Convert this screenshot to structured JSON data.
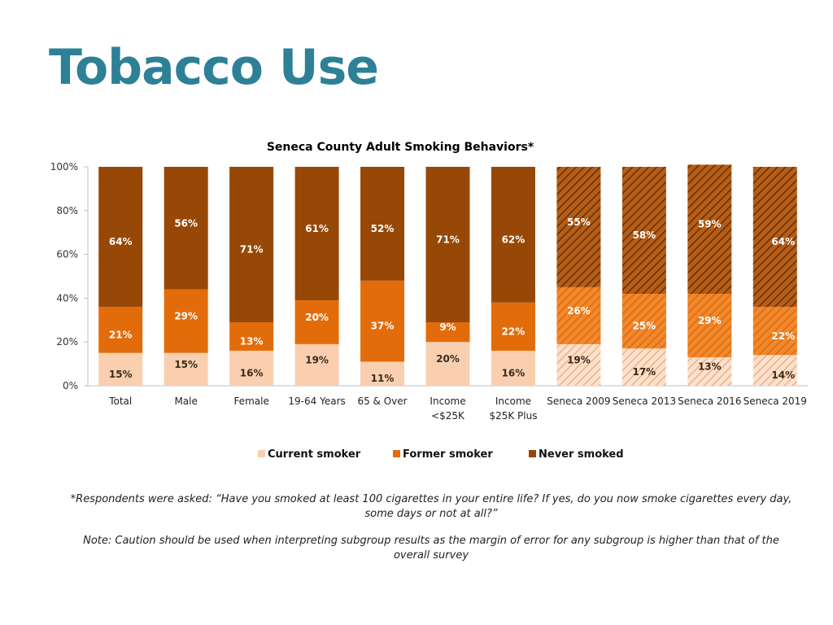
{
  "page": {
    "title": "Tobacco Use",
    "footnote1": "*Respondents were asked: “Have you smoked at least 100 cigarettes in your entire life? If yes, do you now smoke cigarettes every day, some days or not at all?”",
    "footnote2": "Note: Caution should be used when interpreting subgroup results as the margin of error for any subgroup is higher than that of the overall survey"
  },
  "chart_data": {
    "type": "bar",
    "stacked": true,
    "title": "Seneca County Adult Smoking Behaviors*",
    "categories": [
      [
        "Total"
      ],
      [
        "Male"
      ],
      [
        "Female"
      ],
      [
        "19-64 Years"
      ],
      [
        "65 & Over"
      ],
      [
        "Income",
        "<$25K"
      ],
      [
        "Income",
        "$25K Plus"
      ],
      [
        "Seneca 2009"
      ],
      [
        "Seneca 2013"
      ],
      [
        "Seneca 2016"
      ],
      [
        "Seneca 2019"
      ]
    ],
    "hatched_categories": [
      7,
      8,
      9,
      10
    ],
    "series": [
      {
        "name": "Current smoker",
        "color": "#f9cfb0",
        "values": [
          15,
          15,
          16,
          19,
          11,
          20,
          16,
          19,
          17,
          13,
          14
        ]
      },
      {
        "name": "Former smoker",
        "color": "#e36c0a",
        "values": [
          21,
          29,
          13,
          20,
          37,
          9,
          22,
          26,
          25,
          29,
          22
        ]
      },
      {
        "name": "Never smoked",
        "color": "#974806",
        "values": [
          64,
          56,
          71,
          61,
          52,
          71,
          62,
          55,
          58,
          59,
          64
        ]
      }
    ],
    "ylim": [
      0,
      100
    ],
    "yticks": [
      "0%",
      "20%",
      "40%",
      "60%",
      "80%",
      "100%"
    ],
    "legend": "bottom",
    "grid": false
  }
}
